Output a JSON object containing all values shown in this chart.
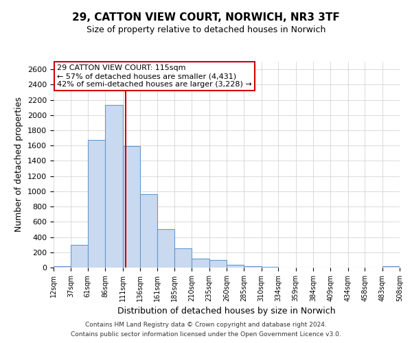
{
  "title_line1": "29, CATTON VIEW COURT, NORWICH, NR3 3TF",
  "title_line2": "Size of property relative to detached houses in Norwich",
  "xlabel": "Distribution of detached houses by size in Norwich",
  "ylabel": "Number of detached properties",
  "bar_left_edges": [
    12,
    37,
    61,
    86,
    111,
    136,
    161,
    185,
    210,
    235,
    260,
    285,
    310,
    334,
    359,
    384,
    409,
    434,
    458,
    483
  ],
  "bar_widths": [
    25,
    24,
    25,
    25,
    25,
    25,
    24,
    25,
    25,
    25,
    25,
    25,
    24,
    25,
    25,
    25,
    25,
    24,
    25,
    25
  ],
  "bar_heights": [
    20,
    300,
    1670,
    2130,
    1590,
    960,
    500,
    250,
    120,
    95,
    35,
    15,
    5,
    2,
    2,
    2,
    0,
    0,
    0,
    18
  ],
  "bar_color": "#c9d9f0",
  "bar_edge_color": "#6699cc",
  "tick_labels": [
    "12sqm",
    "37sqm",
    "61sqm",
    "86sqm",
    "111sqm",
    "136sqm",
    "161sqm",
    "185sqm",
    "210sqm",
    "235sqm",
    "260sqm",
    "285sqm",
    "310sqm",
    "334sqm",
    "359sqm",
    "384sqm",
    "409sqm",
    "434sqm",
    "458sqm",
    "483sqm",
    "508sqm"
  ],
  "ylim": [
    0,
    2700
  ],
  "yticks": [
    0,
    200,
    400,
    600,
    800,
    1000,
    1200,
    1400,
    1600,
    1800,
    2000,
    2200,
    2400,
    2600
  ],
  "vline_x": 115,
  "vline_color": "#cc0000",
  "annotation_title": "29 CATTON VIEW COURT: 115sqm",
  "annotation_line1": "← 57% of detached houses are smaller (4,431)",
  "annotation_line2": "42% of semi-detached houses are larger (3,228) →",
  "annotation_box_color": "#ffffff",
  "annotation_box_edge_color": "#cc0000",
  "footer_line1": "Contains HM Land Registry data © Crown copyright and database right 2024.",
  "footer_line2": "Contains public sector information licensed under the Open Government Licence v3.0.",
  "background_color": "#ffffff",
  "grid_color": "#cccccc"
}
